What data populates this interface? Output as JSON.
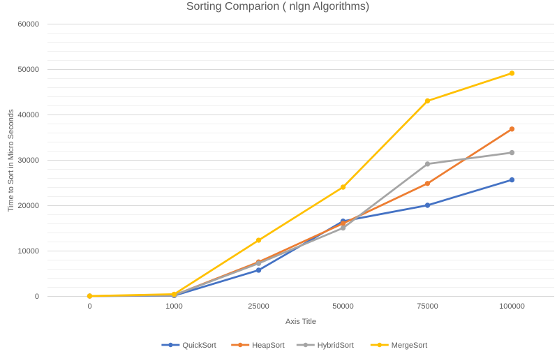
{
  "chart_data": {
    "type": "line",
    "title": "Sorting Comparion ( nlgn Algorithms)",
    "xlabel": "Axis Title",
    "ylabel": "Time to Sort in Micro Seconds",
    "categories": [
      "0",
      "1000",
      "25000",
      "50000",
      "75000",
      "100000"
    ],
    "ylim": [
      0,
      60000
    ],
    "yticks": [
      0,
      10000,
      20000,
      30000,
      40000,
      50000,
      60000
    ],
    "grid": true,
    "legend": "bottom",
    "series": [
      {
        "name": "QuickSort",
        "color": "#4472C4",
        "values": [
          0,
          100,
          5700,
          16500,
          20000,
          25600
        ]
      },
      {
        "name": "HeapSort",
        "color": "#ED7D31",
        "values": [
          0,
          200,
          7500,
          16000,
          24800,
          36800
        ]
      },
      {
        "name": "HybridSort",
        "color": "#A5A5A5",
        "values": [
          0,
          200,
          7200,
          15000,
          29100,
          31600
        ]
      },
      {
        "name": "MergeSort",
        "color": "#FFC000",
        "values": [
          0,
          400,
          12300,
          24000,
          43000,
          49100
        ]
      }
    ]
  }
}
